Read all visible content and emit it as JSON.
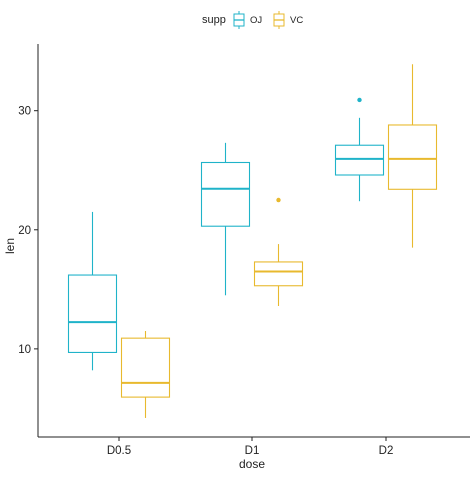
{
  "chart_data": {
    "type": "boxplot",
    "xlabel": "dose",
    "ylabel": "len",
    "categories": [
      "D0.5",
      "D1",
      "D2"
    ],
    "ylim": [
      2.6,
      35.6
    ],
    "yticks": [
      10,
      20,
      30
    ],
    "legend": {
      "title": "supp",
      "position": "top",
      "entries": [
        "OJ",
        "VC"
      ]
    },
    "grid": false,
    "series": [
      {
        "name": "OJ",
        "color": "#1fb3c9",
        "boxes": [
          {
            "category": "D0.5",
            "min": 8.2,
            "q1": 9.7,
            "median": 12.25,
            "q3": 16.2,
            "max": 21.5,
            "outliers": []
          },
          {
            "category": "D1",
            "min": 14.5,
            "q1": 20.3,
            "median": 23.45,
            "q3": 25.65,
            "max": 27.3,
            "outliers": []
          },
          {
            "category": "D2",
            "min": 22.4,
            "q1": 24.6,
            "median": 25.95,
            "q3": 27.1,
            "max": 29.4,
            "outliers": [
              30.9
            ]
          }
        ]
      },
      {
        "name": "VC",
        "color": "#e8b92e",
        "boxes": [
          {
            "category": "D0.5",
            "min": 4.2,
            "q1": 5.95,
            "median": 7.15,
            "q3": 10.9,
            "max": 11.5,
            "outliers": []
          },
          {
            "category": "D1",
            "min": 13.6,
            "q1": 15.3,
            "median": 16.5,
            "q3": 17.3,
            "max": 18.8,
            "outliers": [
              22.5
            ]
          },
          {
            "category": "D2",
            "min": 18.5,
            "q1": 23.4,
            "median": 25.95,
            "q3": 28.8,
            "max": 33.9,
            "outliers": []
          }
        ]
      }
    ]
  }
}
